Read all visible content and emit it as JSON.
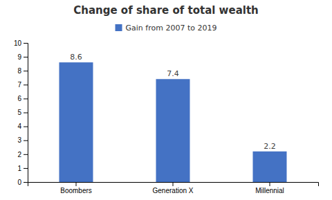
{
  "chart_data": {
    "type": "bar",
    "title": "Change of share of total wealth",
    "categories": [
      "Boombers",
      "Generation X",
      "Millennial"
    ],
    "series": [
      {
        "name": "Gain from 2007 to 2019",
        "color": "#4472C4",
        "values": [
          8.6,
          7.4,
          2.2
        ]
      }
    ],
    "ylim": [
      0,
      10
    ],
    "yticks": [
      0,
      1,
      2,
      3,
      4,
      5,
      6,
      7,
      8,
      9,
      10
    ],
    "grid": false,
    "legend": "top",
    "data_labels": true
  }
}
